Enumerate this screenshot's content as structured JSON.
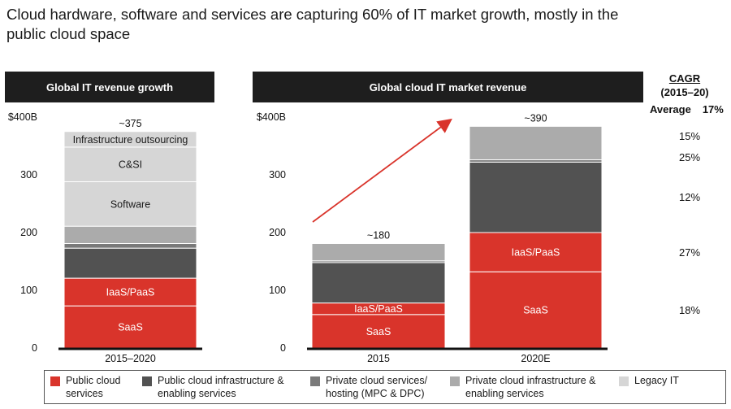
{
  "headline": "Cloud hardware, software and services are capturing 60% of IT market growth, mostly in the public cloud space",
  "colors": {
    "public_cloud": "#d9342b",
    "public_infra": "#525252",
    "private_services": "#7a7a7a",
    "private_infra": "#ababab",
    "legacy": "#d6d6d6",
    "arrow": "#d9342b"
  },
  "chart_data": [
    {
      "type": "bar",
      "stacked": true,
      "title": "Global IT revenue growth",
      "y_unit_label": "$400B",
      "ylim": [
        0,
        400
      ],
      "yticks": [
        "0",
        "100",
        "200",
        "300",
        "$400B"
      ],
      "categories": [
        "2015–2020"
      ],
      "total_labels": [
        "~375"
      ],
      "segments": [
        {
          "series": "public_cloud",
          "label": "SaaS",
          "values": [
            73
          ]
        },
        {
          "series": "public_cloud",
          "label": "IaaS/PaaS",
          "values": [
            48
          ]
        },
        {
          "series": "public_infra",
          "label": "",
          "values": [
            52
          ]
        },
        {
          "series": "private_services",
          "label": "",
          "values": [
            8
          ]
        },
        {
          "series": "private_infra",
          "label": "",
          "values": [
            30
          ]
        },
        {
          "series": "legacy",
          "label": "Software",
          "values": [
            77
          ]
        },
        {
          "series": "legacy",
          "label": "C&SI",
          "values": [
            60
          ]
        },
        {
          "series": "legacy",
          "label": "Infrastructure outsourcing",
          "values": [
            27
          ]
        }
      ]
    },
    {
      "type": "bar",
      "stacked": true,
      "title": "Global cloud IT market revenue",
      "y_unit_label": "$400B",
      "ylim": [
        0,
        400
      ],
      "yticks": [
        "0",
        "100",
        "200",
        "300",
        "$400B"
      ],
      "categories": [
        "2015",
        "2020E"
      ],
      "total_labels": [
        "~180",
        "~390"
      ],
      "segments": [
        {
          "series": "public_cloud",
          "label": "SaaS",
          "values": [
            58,
            132
          ]
        },
        {
          "series": "public_cloud",
          "label": "IaaS/PaaS",
          "values": [
            20,
            68
          ]
        },
        {
          "series": "public_infra",
          "label": "",
          "values": [
            70,
            122
          ]
        },
        {
          "series": "private_services",
          "label": "",
          "values": [
            3,
            4
          ]
        },
        {
          "series": "private_infra",
          "label": "",
          "values": [
            30,
            58
          ]
        }
      ]
    }
  ],
  "cagr": {
    "title_line1": "CAGR",
    "title_line2": "(2015–20)",
    "average_label": "Average",
    "average_value": "17%",
    "values": [
      "15%",
      "25%",
      "12%",
      "27%",
      "18%"
    ]
  },
  "legend": [
    {
      "series": "public_cloud",
      "line1": "Public cloud",
      "line2": "services"
    },
    {
      "series": "public_infra",
      "line1": "Public cloud infrastructure &",
      "line2": "enabling services"
    },
    {
      "series": "private_services",
      "line1": "Private cloud services/",
      "line2": "hosting (MPC & DPC)"
    },
    {
      "series": "private_infra",
      "line1": "Private cloud infrastructure &",
      "line2": "enabling services"
    },
    {
      "series": "legacy",
      "line1": "Legacy IT",
      "line2": ""
    }
  ]
}
